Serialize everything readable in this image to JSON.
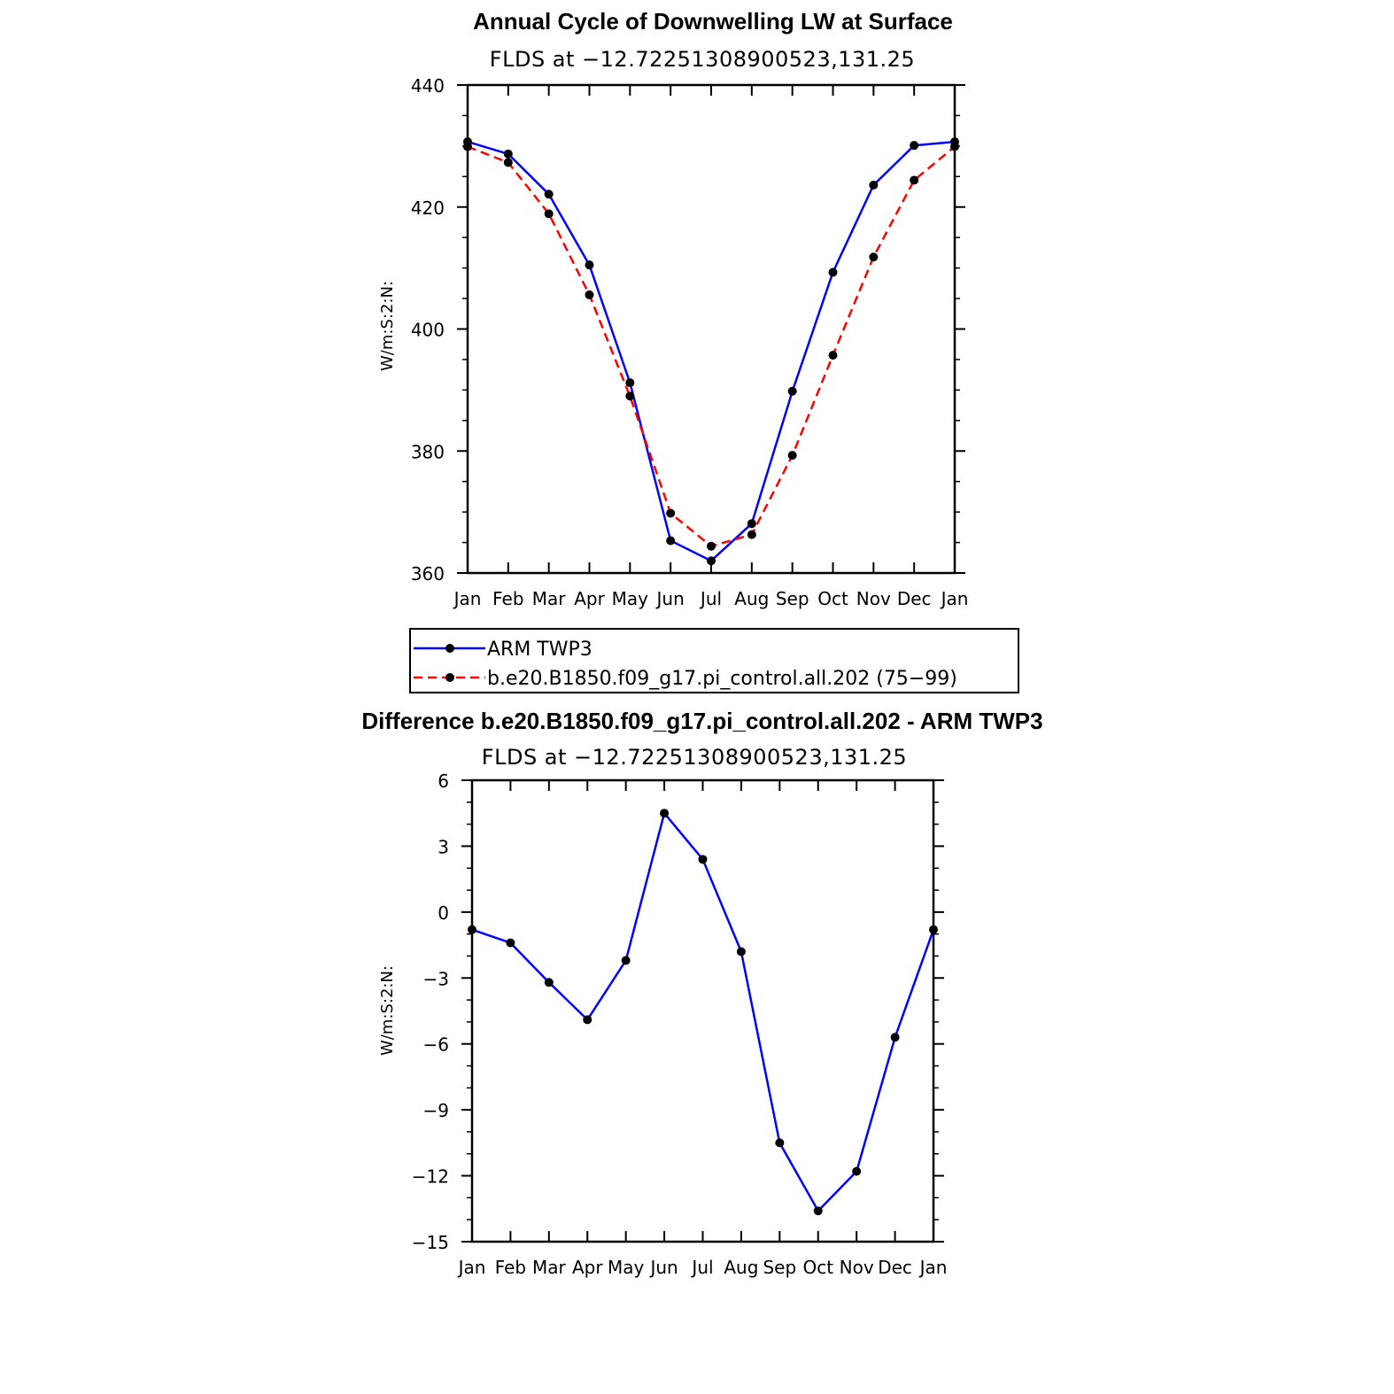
{
  "chart_data": [
    {
      "type": "line",
      "title": "Annual Cycle of Downwelling LW at Surface",
      "subtitle": "FLDS at −12.72251308900523,131.25",
      "ylabel": "W/m:S:2:N:",
      "xlabel": "",
      "categories": [
        "Jan",
        "Feb",
        "Mar",
        "Apr",
        "May",
        "Jun",
        "Jul",
        "Aug",
        "Sep",
        "Oct",
        "Nov",
        "Dec",
        "Jan"
      ],
      "ylim": [
        360,
        440
      ],
      "yticks": [
        "440",
        "420",
        "400",
        "380",
        "360"
      ],
      "series": [
        {
          "name": "ARM TWP3",
          "color": "#0000ff",
          "dash": "solid",
          "values": [
            430.7,
            428.7,
            422.1,
            410.5,
            391.2,
            365.3,
            362.0,
            368.1,
            389.8,
            409.3,
            423.6,
            430.1,
            430.7
          ]
        },
        {
          "name": "b.e20.B1850.f09_g17.pi_control.all.202 (75−99)",
          "color": "#ff0000",
          "dash": "dashed",
          "values": [
            429.9,
            427.3,
            418.9,
            405.6,
            389.0,
            369.8,
            364.4,
            366.3,
            379.3,
            395.7,
            411.8,
            424.4,
            429.9
          ]
        }
      ],
      "legend_position": "below"
    },
    {
      "type": "line",
      "title": "Difference b.e20.B1850.f09_g17.pi_control.all.202 - ARM TWP3",
      "subtitle": "FLDS at −12.72251308900523,131.25",
      "ylabel": "W/m:S:2:N:",
      "xlabel": "",
      "categories": [
        "Jan",
        "Feb",
        "Mar",
        "Apr",
        "May",
        "Jun",
        "Jul",
        "Aug",
        "Sep",
        "Oct",
        "Nov",
        "Dec",
        "Jan"
      ],
      "ylim": [
        -15,
        6
      ],
      "yticks": [
        "6",
        "3",
        "0",
        "−3",
        "−6",
        "−9",
        "−12",
        "−15"
      ],
      "series": [
        {
          "name": "difference",
          "color": "#0000ff",
          "dash": "solid",
          "values": [
            -0.8,
            -1.4,
            -3.2,
            -4.9,
            -2.2,
            4.5,
            2.4,
            -1.8,
            -10.5,
            -13.6,
            -11.8,
            -5.7,
            -0.8
          ]
        }
      ]
    }
  ]
}
